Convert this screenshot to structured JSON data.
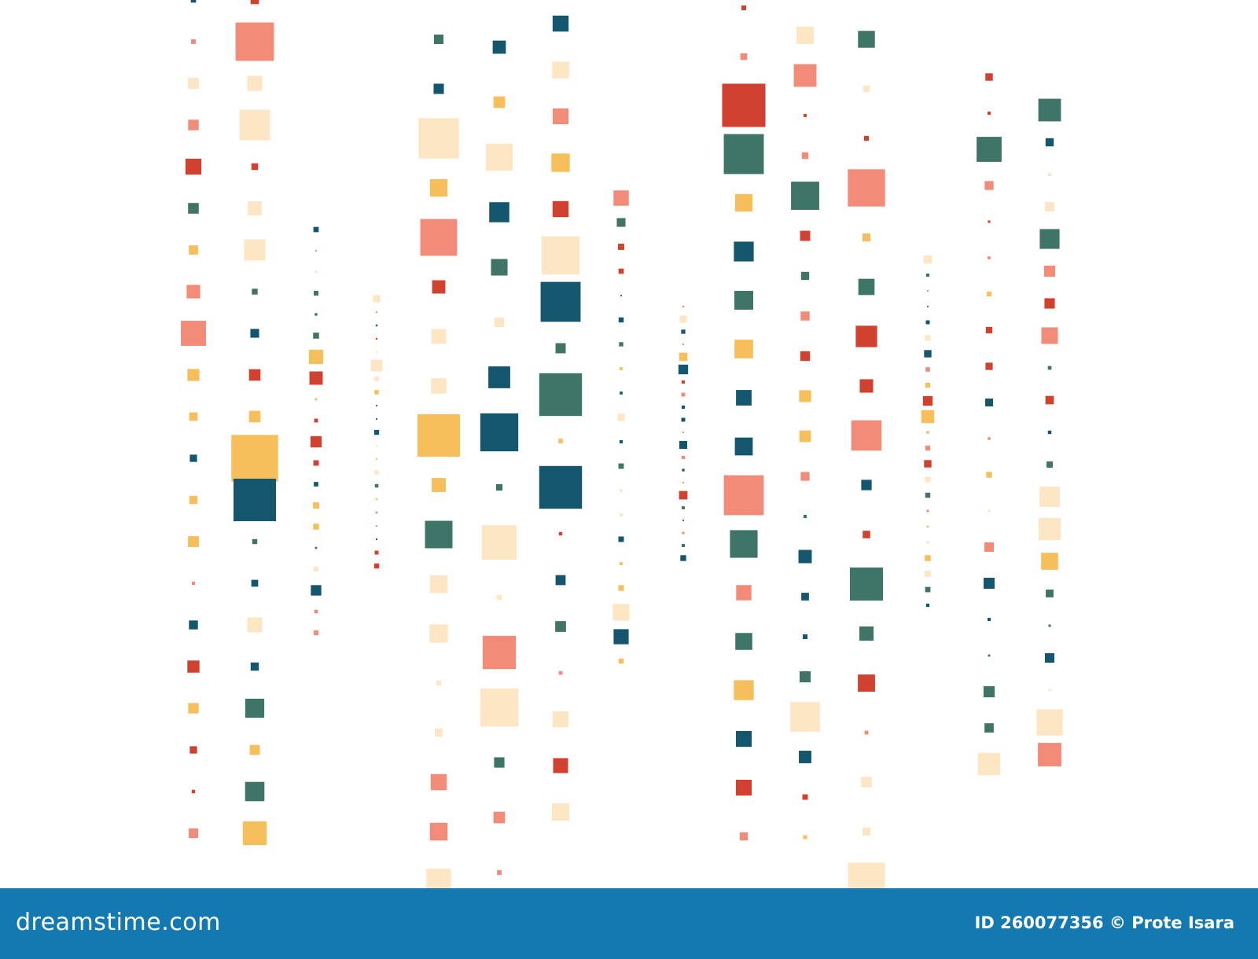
{
  "footer": {
    "logo": "dreamstime.com",
    "image_id": "ID 260077356",
    "credit": "© Prote Isara"
  }
}
